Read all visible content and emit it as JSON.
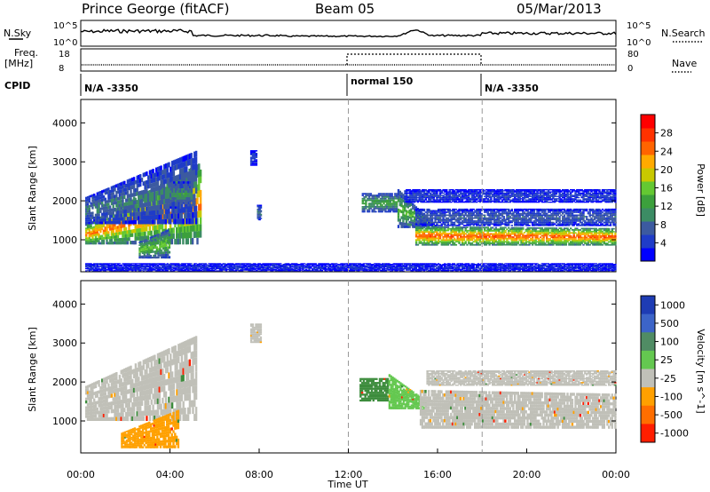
{
  "header": {
    "station": "Prince George (fitACF)",
    "beam": "Beam 05",
    "date": "05/Mar/2013"
  },
  "strip": {
    "nsky_label": "N.Sky",
    "nsearch_label": "N.Search",
    "nsky_ticks": [
      "10^5",
      "10^0"
    ],
    "nsky_ticks_right": [
      "10^5",
      "10^0"
    ],
    "freq_label_1": "Freq.",
    "freq_label_2": "[MHz]",
    "freq_ticks": [
      "18",
      "8"
    ],
    "nave_ticks": [
      "80",
      "0"
    ],
    "nave_label": "Nave",
    "cpid_label": "CPID",
    "cpid_segments": [
      {
        "label": "N/A -3350",
        "start_hour": 0,
        "end_hour": 12
      },
      {
        "label": "normal 150",
        "start_hour": 12,
        "end_hour": 18
      },
      {
        "label": "N/A -3350",
        "start_hour": 18,
        "end_hour": 24
      }
    ]
  },
  "chart_data": [
    {
      "type": "heatmap",
      "name": "power",
      "ylabel": "Slant Range [km]",
      "xlabel": "Time UT",
      "xlim": [
        0,
        24
      ],
      "ylim": [
        180,
        4600
      ],
      "x_ticks": [
        "00:00",
        "04:00",
        "08:00",
        "12:00",
        "16:00",
        "20:00",
        "00:00"
      ],
      "y_ticks": [
        1000,
        2000,
        3000,
        4000
      ],
      "colorbar": {
        "label": "Power [dB]",
        "ticks": [
          4,
          8,
          12,
          16,
          20,
          24,
          28
        ],
        "range": [
          0,
          32
        ],
        "colors": [
          "#0000ff",
          "#1f3cc8",
          "#3c5aa0",
          "#3c8c64",
          "#3ca03c",
          "#64c832",
          "#c8c800",
          "#ffaa00",
          "#ff6400",
          "#ff3200",
          "#ff0000"
        ]
      },
      "features": [
        {
          "t0": 0.2,
          "t1": 5.4,
          "r0": 880,
          "r1": 1400,
          "r1_end": 3000,
          "value": 26
        },
        {
          "t0": 0.2,
          "t1": 5.2,
          "r0": 1400,
          "r1": 2100,
          "r1_end": 3300,
          "value": 10
        },
        {
          "t0": 2.6,
          "t1": 4.0,
          "r0": 520,
          "r1": 950,
          "r1_end": 1300,
          "value": 17
        },
        {
          "t0": 4.0,
          "t1": 5.0,
          "r0": 1800,
          "r1": 2500,
          "r1_end": 2500,
          "value": 12
        },
        {
          "t0": 7.6,
          "t1": 7.9,
          "r0": 2900,
          "r1": 3300,
          "r1_end": 3300,
          "value": 4
        },
        {
          "t0": 7.9,
          "t1": 8.1,
          "r0": 1500,
          "r1": 1900,
          "r1_end": 1900,
          "value": 10
        },
        {
          "t0": 12.6,
          "t1": 14.2,
          "r0": 1700,
          "r1": 2200,
          "r1_end": 2200,
          "value": 14
        },
        {
          "t0": 14.2,
          "t1": 16.0,
          "r0": 1300,
          "r1": 2300,
          "r1_end": 1300,
          "value": 16
        },
        {
          "t0": 15.0,
          "t1": 24.0,
          "r0": 850,
          "r1": 1350,
          "r1_end": 1300,
          "value": 28
        },
        {
          "t0": 15.0,
          "t1": 24.0,
          "r0": 1350,
          "r1": 1800,
          "r1_end": 1800,
          "value": 8
        },
        {
          "t0": 14.5,
          "t1": 24.0,
          "r0": 1950,
          "r1": 2300,
          "r1_end": 2300,
          "value": 5
        },
        {
          "t0": 0.2,
          "t1": 24.0,
          "r0": 200,
          "r1": 400,
          "r1_end": 400,
          "value": 4
        }
      ]
    },
    {
      "type": "heatmap",
      "name": "velocity",
      "ylabel": "Slant Range [km]",
      "xlabel": "Time UT",
      "xlim": [
        0,
        24
      ],
      "ylim": [
        180,
        4600
      ],
      "x_ticks": [
        "00:00",
        "04:00",
        "08:00",
        "12:00",
        "16:00",
        "20:00",
        "00:00"
      ],
      "y_ticks": [
        1000,
        2000,
        3000,
        4000
      ],
      "colorbar": {
        "label": "Velocity [m s^-1]",
        "ticks": [
          "1000",
          "500",
          "100",
          "25",
          "-25",
          "-100",
          "-500",
          "-1000"
        ],
        "colors": [
          "#1e3cb4",
          "#3c64c8",
          "#508c64",
          "#64c850",
          "#c0c0b8",
          "#ffa000",
          "#ff6e00",
          "#ff1e00"
        ]
      },
      "features": [
        {
          "t0": 0.2,
          "t1": 5.2,
          "r0": 1000,
          "r1": 1900,
          "r1_end": 3200,
          "value": "gray"
        },
        {
          "t0": 1.8,
          "t1": 4.4,
          "r0": 300,
          "r1": 700,
          "r1_end": 1300,
          "value": "orange"
        },
        {
          "t0": 7.6,
          "t1": 8.1,
          "r0": 3000,
          "r1": 3500,
          "r1_end": 3500,
          "value": "gray"
        },
        {
          "t0": 12.5,
          "t1": 13.8,
          "r0": 1500,
          "r1": 2100,
          "r1_end": 2100,
          "value": "green"
        },
        {
          "t0": 13.8,
          "t1": 15.5,
          "r0": 1300,
          "r1": 2200,
          "r1_end": 1500,
          "value": "lightgreen"
        },
        {
          "t0": 15.2,
          "t1": 24.0,
          "r0": 800,
          "r1": 1800,
          "r1_end": 1700,
          "value": "gray"
        },
        {
          "t0": 15.5,
          "t1": 24.0,
          "r0": 1900,
          "r1": 2300,
          "r1_end": 2300,
          "value": "gray"
        }
      ]
    }
  ]
}
